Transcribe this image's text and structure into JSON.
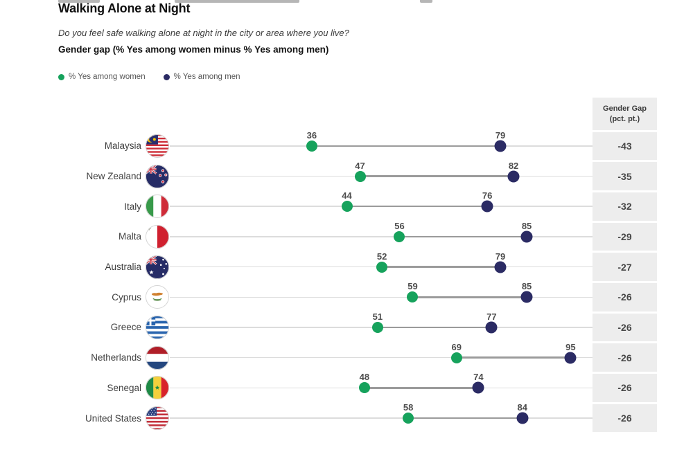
{
  "page": {
    "gap_header_line1": "Gender Gap",
    "gap_header_line2": "(pct. pt.)"
  },
  "chart_data": {
    "type": "dumbbell",
    "title": "Walking Alone at Night",
    "question": "Do you feel safe walking alone at night in the city or area where you live?",
    "measure": "Gender gap (% Yes among women minus % Yes among men)",
    "x_range": [
      0,
      100
    ],
    "grid": false,
    "legend_position": "top-left",
    "legend": [
      {
        "name": "% Yes among women",
        "color": "#16a25c"
      },
      {
        "name": "% Yes among men",
        "color": "#2b2b64"
      }
    ],
    "gap_column_header": "Gender Gap (pct. pt.)",
    "rows": [
      {
        "country": "Malaysia",
        "flag": "malaysia",
        "women": 36,
        "men": 79,
        "gap": -43
      },
      {
        "country": "New Zealand",
        "flag": "new-zealand",
        "women": 47,
        "men": 82,
        "gap": -35
      },
      {
        "country": "Italy",
        "flag": "italy",
        "women": 44,
        "men": 76,
        "gap": -32
      },
      {
        "country": "Malta",
        "flag": "malta",
        "women": 56,
        "men": 85,
        "gap": -29
      },
      {
        "country": "Australia",
        "flag": "australia",
        "women": 52,
        "men": 79,
        "gap": -27
      },
      {
        "country": "Cyprus",
        "flag": "cyprus",
        "women": 59,
        "men": 85,
        "gap": -26
      },
      {
        "country": "Greece",
        "flag": "greece",
        "women": 51,
        "men": 77,
        "gap": -26
      },
      {
        "country": "Netherlands",
        "flag": "netherlands",
        "women": 69,
        "men": 95,
        "gap": -26
      },
      {
        "country": "Senegal",
        "flag": "senegal",
        "women": 48,
        "men": 74,
        "gap": -26
      },
      {
        "country": "United States",
        "flag": "united-states",
        "women": 58,
        "men": 84,
        "gap": -26
      }
    ],
    "colors": {
      "women_dot": "#16a25c",
      "men_dot": "#2b2b64",
      "connector": "#9b9b9b",
      "track": "#dcdcdc",
      "gap_column_bg": "#ededed"
    }
  }
}
